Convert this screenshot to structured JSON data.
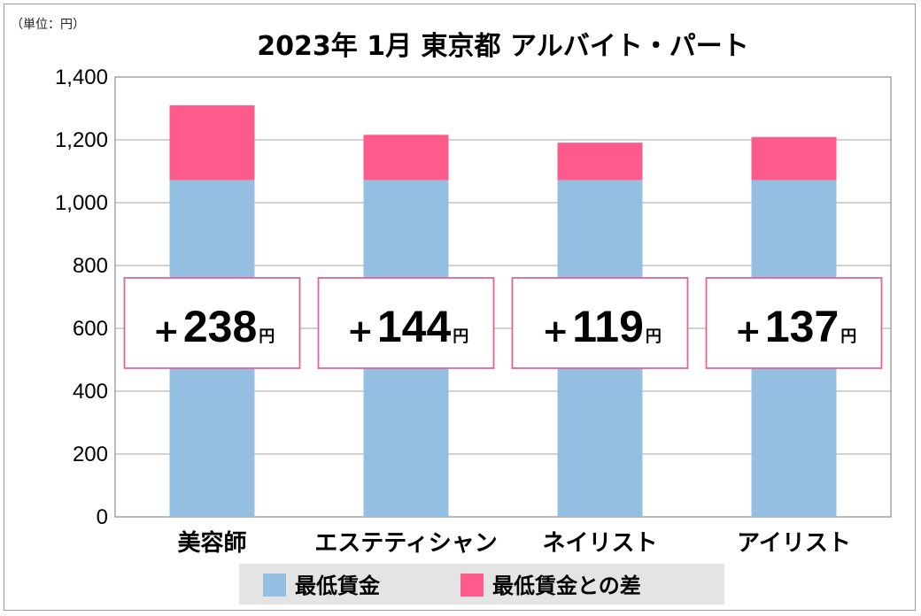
{
  "unit_label": "（単位：円）",
  "chart_data": {
    "type": "bar",
    "stacked": true,
    "title": "2023年 1月  東京都  アルバイト・パート",
    "categories": [
      "美容師",
      "エステティシャン",
      "ネイリスト",
      "アイリスト"
    ],
    "series": [
      {
        "name": "最低賃金",
        "color": "#94bfe0",
        "values": [
          1072,
          1072,
          1072,
          1072
        ]
      },
      {
        "name": "最低賃金との差",
        "color": "#ff5a8c",
        "values": [
          238,
          144,
          119,
          137
        ]
      }
    ],
    "ylim": [
      0,
      1400
    ],
    "yticks": [
      "0",
      "200",
      "400",
      "600",
      "800",
      "1,000",
      "1,200",
      "1,400"
    ],
    "grid": true,
    "legend_position": "bottom",
    "annotations": [
      {
        "plus": "+",
        "value": "238",
        "unit": "円"
      },
      {
        "plus": "+",
        "value": "144",
        "unit": "円"
      },
      {
        "plus": "+",
        "value": "119",
        "unit": "円"
      },
      {
        "plus": "+",
        "value": "137",
        "unit": "円"
      }
    ],
    "annotation_border_color": "#e0649a"
  }
}
